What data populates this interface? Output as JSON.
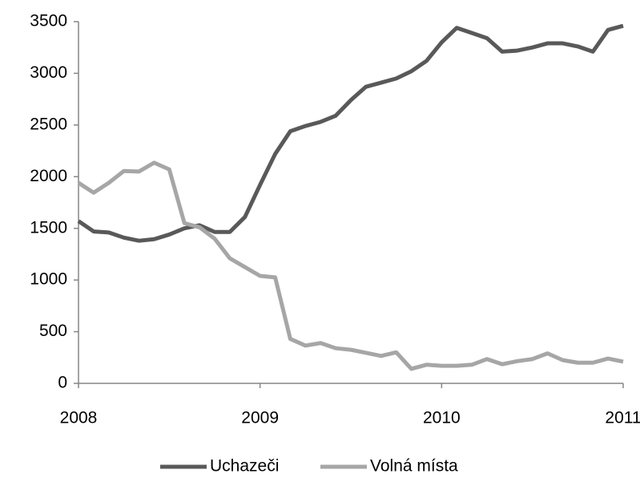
{
  "chart_data": {
    "type": "line",
    "categories": [
      "2008",
      null,
      null,
      null,
      null,
      null,
      null,
      null,
      null,
      null,
      null,
      null,
      "2009",
      null,
      null,
      null,
      null,
      null,
      null,
      null,
      null,
      null,
      null,
      null,
      "2010",
      null,
      null,
      null,
      null,
      null,
      null,
      null,
      null,
      null,
      null,
      null,
      "2011"
    ],
    "series": [
      {
        "name": "Uchazeči",
        "color": "#595959",
        "values": [
          1570,
          1470,
          1460,
          1410,
          1380,
          1395,
          1440,
          1500,
          1530,
          1465,
          1465,
          1610,
          1920,
          2220,
          2440,
          2490,
          2530,
          2590,
          2740,
          2870,
          2910,
          2950,
          3020,
          3120,
          3300,
          3440,
          3390,
          3340,
          3210,
          3220,
          3250,
          3290,
          3290,
          3260,
          3210,
          3420,
          3460
        ]
      },
      {
        "name": "Volná místa",
        "color": "#a6a6a6",
        "values": [
          1940,
          1845,
          1940,
          2055,
          2050,
          2135,
          2070,
          1550,
          1510,
          1400,
          1210,
          1125,
          1040,
          1025,
          430,
          365,
          390,
          340,
          325,
          295,
          265,
          300,
          140,
          180,
          170,
          170,
          180,
          235,
          185,
          215,
          235,
          290,
          225,
          200,
          200,
          240,
          210
        ]
      }
    ],
    "ylim": [
      0,
      3500
    ],
    "yticks": [
      0,
      500,
      1000,
      1500,
      2000,
      2500,
      3000,
      3500
    ],
    "grid": false,
    "legend": "bottom"
  }
}
